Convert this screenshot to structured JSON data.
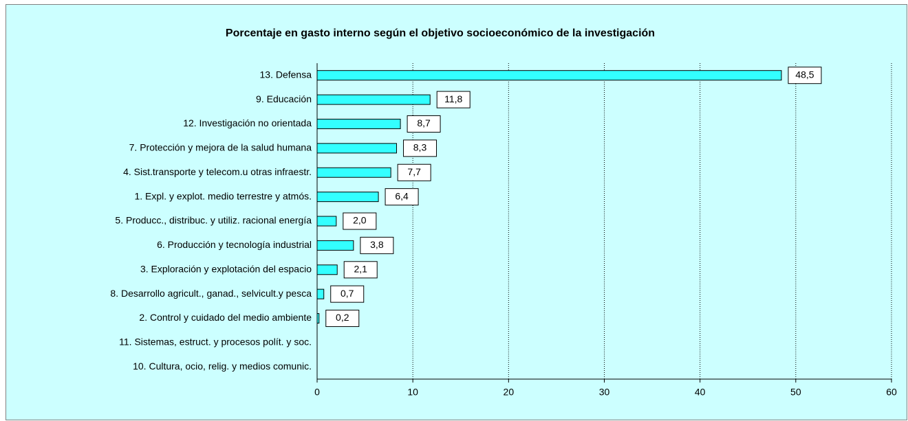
{
  "chart_data": {
    "type": "bar",
    "orientation": "horizontal",
    "title": "Porcentaje en gasto interno según el objetivo socioeconómico de la investigación",
    "categories": [
      "13. Defensa",
      "9. Educación",
      "12. Investigación no orientada",
      "7. Protección y mejora de la salud humana",
      "4. Sist.transporte y telecom.u otras infraestr.",
      "1. Expl. y explot. medio terrestre y atmós.",
      "5. Producc., distribuc. y utiliz. racional energía",
      "6. Producción y tecnología industrial",
      "3. Exploración y explotación del espacio",
      "8. Desarrollo agricult., ganad., selvicult.y pesca",
      "2. Control y cuidado del medio ambiente",
      "11. Sistemas, estruct. y procesos polít. y soc.",
      "10. Cultura, ocio, relig. y medios  comunic."
    ],
    "values": [
      48.5,
      11.8,
      8.7,
      8.3,
      7.7,
      6.4,
      2.0,
      3.8,
      2.1,
      0.7,
      0.2,
      null,
      null
    ],
    "value_labels": [
      "48,5",
      "11,8",
      "8,7",
      "8,3",
      "7,7",
      "6,4",
      "2,0",
      "3,8",
      "2,1",
      "0,7",
      "0,2",
      null,
      null
    ],
    "color": "#33ffff",
    "xlim": [
      0,
      60
    ],
    "xticks": [
      0,
      10,
      20,
      30,
      40,
      50,
      60
    ],
    "grid": true
  }
}
